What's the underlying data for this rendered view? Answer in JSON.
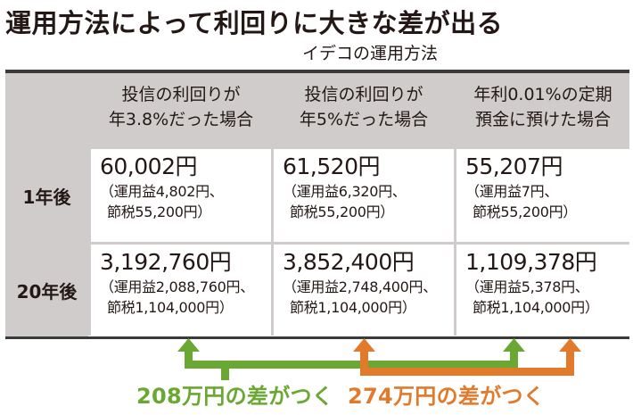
{
  "title": "運用方法によって利回りに大きな差が出る",
  "subtitle": "イデコの運用方法",
  "table": {
    "columns": [
      {
        "line1": "投信の利回りが",
        "line2": "年3.8%だった場合"
      },
      {
        "line1": "投信の利回りが",
        "line2": "年5%だった場合"
      },
      {
        "line1": "年利0.01%の定期",
        "line2": "預金に預けた場合"
      }
    ],
    "rows": [
      {
        "label": "1年後",
        "cells": [
          {
            "amount": "60,002円",
            "note1": "（運用益4,802円、",
            "note2": "節税55,200円）"
          },
          {
            "amount": "61,520円",
            "note1": "（運用益6,320円、",
            "note2": "節税55,200円）"
          },
          {
            "amount": "55,207円",
            "note1": "（運用益7円、",
            "note2": "節税55,200円）"
          }
        ]
      },
      {
        "label": "20年後",
        "cells": [
          {
            "amount": "3,192,760円",
            "note1": "（運用益2,088,760円、",
            "note2": "節税1,104,000円）"
          },
          {
            "amount": "3,852,400円",
            "note1": "（運用益2,748,400円、",
            "note2": "節税1,104,000円）"
          },
          {
            "amount": "1,109,378円",
            "note1": "（運用益5,378円、",
            "note2": "節税1,104,000円）"
          }
        ]
      }
    ]
  },
  "annotations": {
    "green": {
      "text": "208万円の差がつく",
      "color": "#6aa833"
    },
    "orange": {
      "text": "274万円の差がつく",
      "color": "#e27a2c"
    }
  },
  "colors": {
    "header_bg": "#cfcccb",
    "rule": "#3b3a3a"
  }
}
